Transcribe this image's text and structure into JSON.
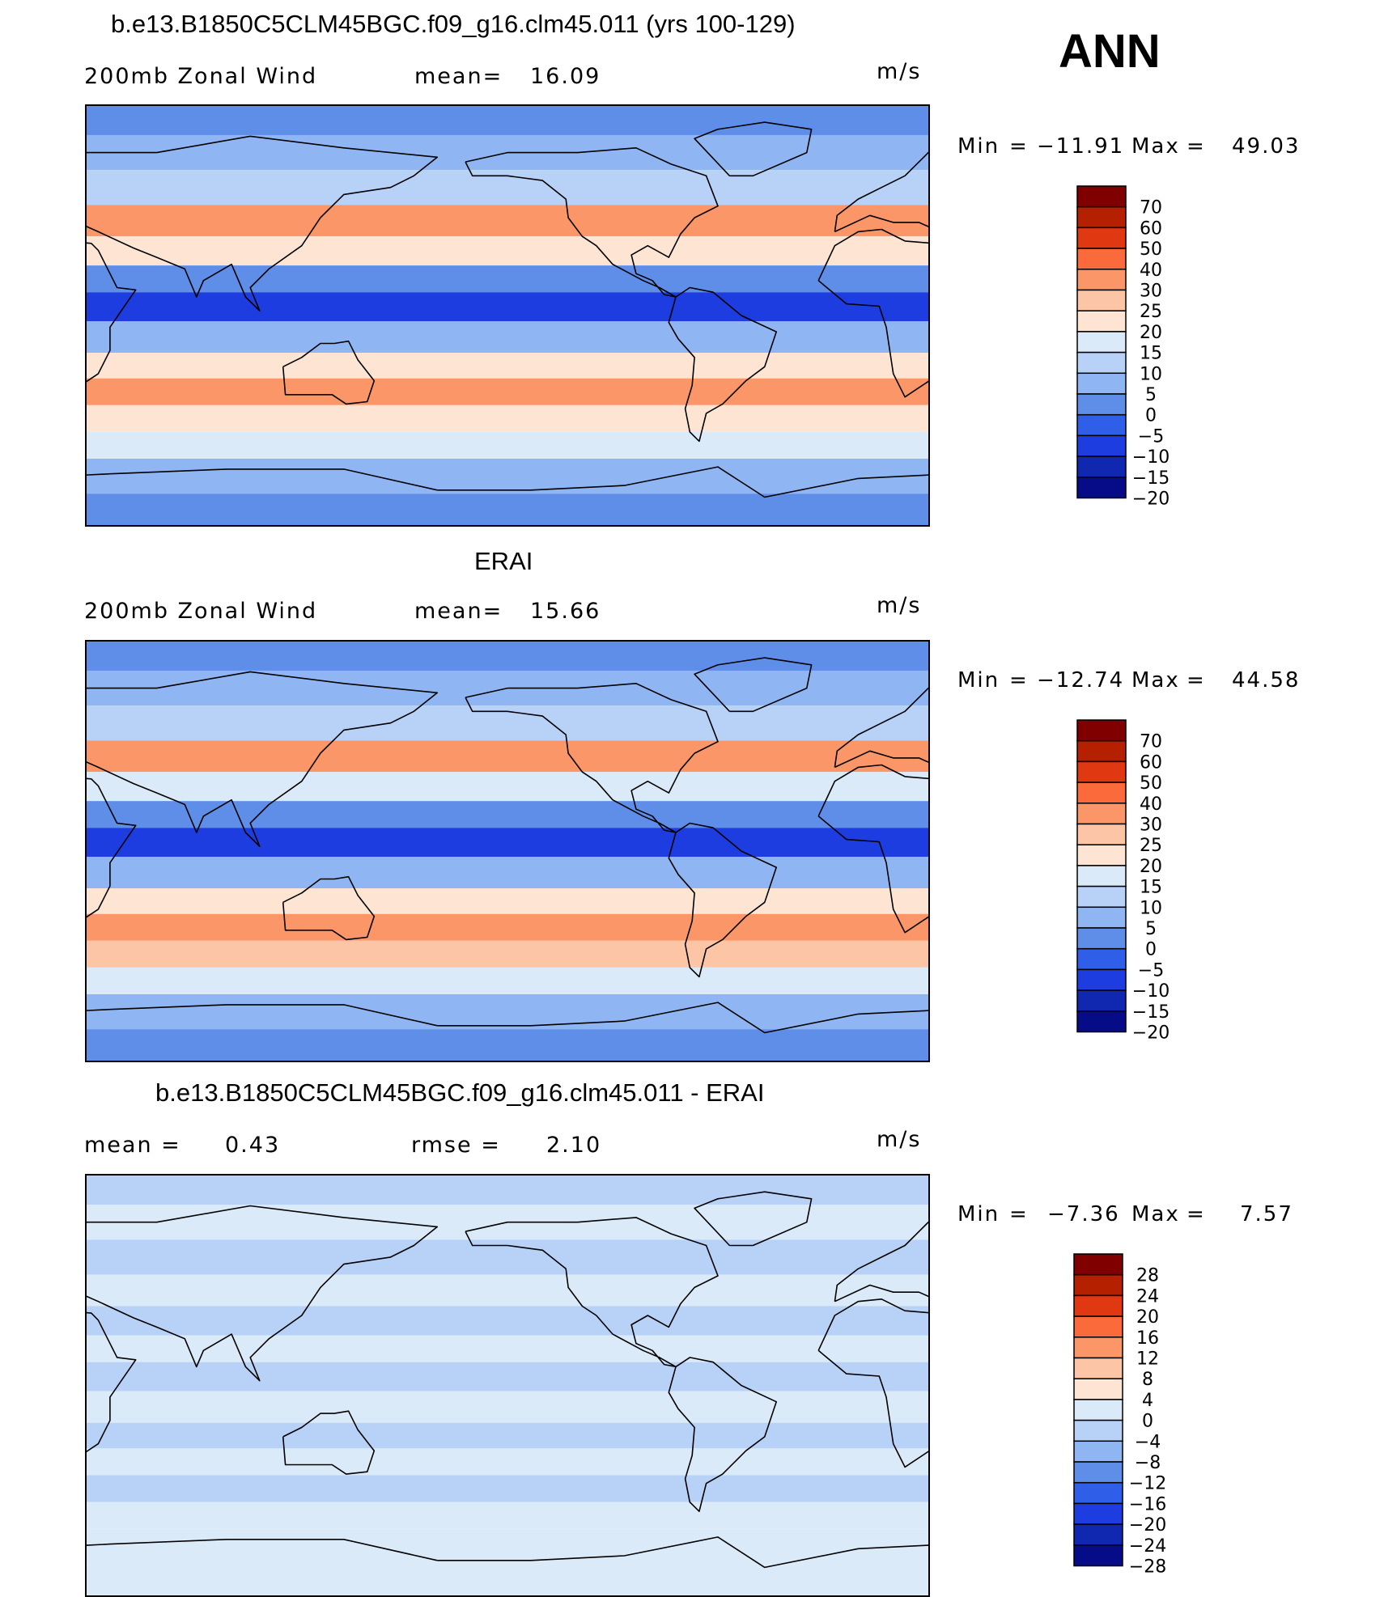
{
  "season": "ANN",
  "chart_data": [
    {
      "type": "heatmap",
      "title": "b.e13.B1850C5CLM45BGC.f09_g16.clm45.011 (yrs 100-129)",
      "variable": "200mb Zonal Wind",
      "stat1_label": "mean=",
      "stat1_value": "16.09",
      "stat2_label": "",
      "stat2_value": "",
      "units": "m/s",
      "min_label": "Min",
      "min_value": "−11.91",
      "max_label": "Max",
      "max_value": "49.03",
      "levels": [
        "70",
        "60",
        "50",
        "40",
        "30",
        "25",
        "20",
        "15",
        "10",
        "5",
        "0",
        "−5",
        "−10",
        "−15",
        "−20"
      ],
      "colors": [
        "#800000",
        "#b42000",
        "#e03810",
        "#fa6a3a",
        "#fb9669",
        "#fcc5a6",
        "#fee4d2",
        "#dbeaf8",
        "#b7d2f6",
        "#8fb5f2",
        "#5f8ee9",
        "#2f5fe8",
        "#1e3de0",
        "#1028b0",
        "#060c88"
      ],
      "bands": [
        {
          "lat": 85,
          "value": 2
        },
        {
          "lat": 70,
          "value": 7
        },
        {
          "lat": 55,
          "value": 13
        },
        {
          "lat": 40,
          "value": 31
        },
        {
          "lat": 28,
          "value": 20
        },
        {
          "lat": 15,
          "value": 3
        },
        {
          "lat": 5,
          "value": -6
        },
        {
          "lat": -10,
          "value": 6
        },
        {
          "lat": -22,
          "value": 22
        },
        {
          "lat": -32,
          "value": 33
        },
        {
          "lat": -45,
          "value": 24
        },
        {
          "lat": -55,
          "value": 15
        },
        {
          "lat": -68,
          "value": 6
        },
        {
          "lat": -85,
          "value": 1
        }
      ]
    },
    {
      "type": "heatmap",
      "title": "ERAI",
      "variable": "200mb Zonal Wind",
      "stat1_label": "mean=",
      "stat1_value": "15.66",
      "stat2_label": "",
      "stat2_value": "",
      "units": "m/s",
      "min_label": "Min",
      "min_value": "−12.74",
      "max_label": "Max",
      "max_value": "44.58",
      "levels": [
        "70",
        "60",
        "50",
        "40",
        "30",
        "25",
        "20",
        "15",
        "10",
        "5",
        "0",
        "−5",
        "−10",
        "−15",
        "−20"
      ],
      "colors": [
        "#800000",
        "#b42000",
        "#e03810",
        "#fa6a3a",
        "#fb9669",
        "#fcc5a6",
        "#fee4d2",
        "#dbeaf8",
        "#b7d2f6",
        "#8fb5f2",
        "#5f8ee9",
        "#2f5fe8",
        "#1e3de0",
        "#1028b0",
        "#060c88"
      ],
      "bands": [
        {
          "lat": 85,
          "value": 4
        },
        {
          "lat": 70,
          "value": 8
        },
        {
          "lat": 55,
          "value": 14
        },
        {
          "lat": 40,
          "value": 30
        },
        {
          "lat": 28,
          "value": 18
        },
        {
          "lat": 15,
          "value": 2
        },
        {
          "lat": 5,
          "value": -7
        },
        {
          "lat": -10,
          "value": 7
        },
        {
          "lat": -22,
          "value": 20
        },
        {
          "lat": -32,
          "value": 31
        },
        {
          "lat": -45,
          "value": 26
        },
        {
          "lat": -55,
          "value": 16
        },
        {
          "lat": -68,
          "value": 7
        },
        {
          "lat": -85,
          "value": 3
        }
      ]
    },
    {
      "type": "heatmap",
      "title": "b.e13.B1850C5CLM45BGC.f09_g16.clm45.011 - ERAI",
      "variable": "",
      "stat1_label": "mean =",
      "stat1_value": "0.43",
      "stat2_label": "rmse =",
      "stat2_value": "2.10",
      "units": "m/s",
      "min_label": "Min",
      "min_value": "−7.36",
      "max_label": "Max",
      "max_value": "7.57",
      "levels": [
        "28",
        "24",
        "20",
        "16",
        "12",
        "8",
        "4",
        "0",
        "−4",
        "−8",
        "−12",
        "−16",
        "−20",
        "−24",
        "−28"
      ],
      "colors": [
        "#800000",
        "#b42000",
        "#e03810",
        "#fa6a3a",
        "#fb9669",
        "#fcc5a6",
        "#fee4d2",
        "#dbeaf8",
        "#b7d2f6",
        "#8fb5f2",
        "#5f8ee9",
        "#2f5fe8",
        "#1e3de0",
        "#1028b0",
        "#060c88"
      ],
      "bands": [
        {
          "lat": 85,
          "value": -1
        },
        {
          "lat": 70,
          "value": 1
        },
        {
          "lat": 55,
          "value": -1
        },
        {
          "lat": 40,
          "value": 1
        },
        {
          "lat": 28,
          "value": -1
        },
        {
          "lat": 15,
          "value": 1
        },
        {
          "lat": 5,
          "value": -1
        },
        {
          "lat": -10,
          "value": 1
        },
        {
          "lat": -22,
          "value": -1
        },
        {
          "lat": -32,
          "value": 1
        },
        {
          "lat": -45,
          "value": -1
        },
        {
          "lat": -55,
          "value": 1
        },
        {
          "lat": -68,
          "value": 1
        },
        {
          "lat": -85,
          "value": 2
        }
      ]
    }
  ]
}
